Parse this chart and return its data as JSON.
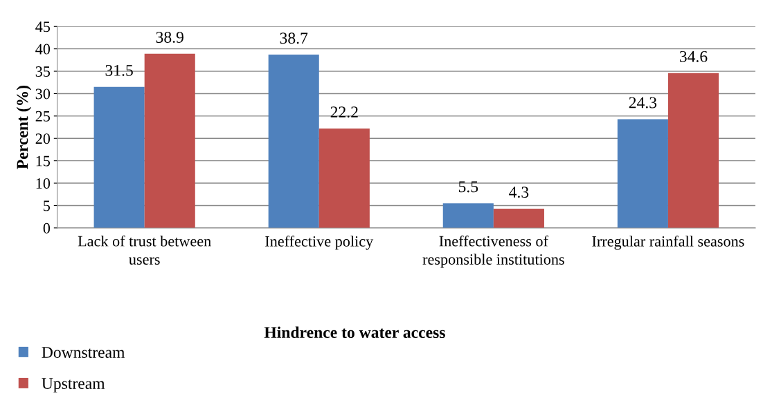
{
  "chart_data": {
    "type": "bar",
    "xlabel": "Hindrence to water access",
    "ylabel": "Percent (%)",
    "categories": [
      "Lack of trust between users",
      "Ineffective policy",
      "Ineffectiveness of responsible institutions",
      "Irregular rainfall seasons"
    ],
    "series": [
      {
        "name": "Downstream",
        "color": "#4f81bd",
        "values": [
          31.5,
          38.7,
          5.5,
          24.3
        ]
      },
      {
        "name": "Upstream",
        "color": "#c0504d",
        "values": [
          38.9,
          22.2,
          4.3,
          34.6
        ]
      }
    ],
    "ylim": [
      0,
      45
    ],
    "yticks": [
      0,
      5,
      10,
      15,
      20,
      25,
      30,
      35,
      40,
      45
    ],
    "grid": "y",
    "data_labels": true,
    "legend": "bottom left"
  }
}
